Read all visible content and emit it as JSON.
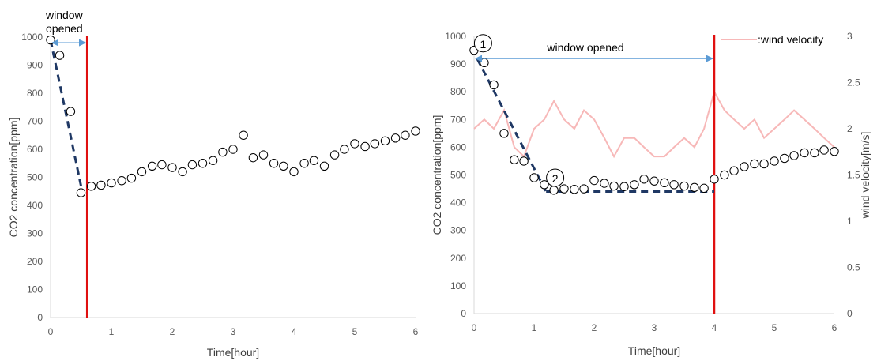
{
  "colors": {
    "marker_stroke": "#000000",
    "axis": "#d9d9d9",
    "tick_text": "#595959",
    "vline": "#e01010",
    "trend": "#1f3864",
    "arrow": "#5b9bd5",
    "wind": "#f7b8b8"
  },
  "chart_data": [
    {
      "type": "scatter",
      "xlabel": "Time[hour]",
      "ylabel": "CO2 concentration[ppm]",
      "xlim": [
        0,
        6
      ],
      "ylim": [
        0,
        1000
      ],
      "xticks": [
        "0",
        "1",
        "2",
        "3",
        "4",
        "5",
        "6"
      ],
      "yticks": [
        "0",
        "100",
        "200",
        "300",
        "400",
        "500",
        "600",
        "700",
        "800",
        "900",
        "1000"
      ],
      "grid": false,
      "series": [
        {
          "x": [
            0.0,
            0.15,
            0.33,
            0.5,
            0.67,
            0.83,
            1.0,
            1.17,
            1.33,
            1.5,
            1.67,
            1.83,
            2.0,
            2.17,
            2.33,
            2.5,
            2.67,
            2.83,
            3.0,
            3.17,
            3.33,
            3.5,
            3.67,
            3.83,
            4.0,
            4.17,
            4.33,
            4.5,
            4.67,
            4.83,
            5.0,
            5.17,
            5.33,
            5.5,
            5.67,
            5.83,
            6.0
          ],
          "y": [
            990,
            935,
            735,
            445,
            468,
            472,
            480,
            488,
            497,
            520,
            540,
            545,
            535,
            520,
            545,
            550,
            560,
            590,
            600,
            650,
            570,
            580,
            550,
            540,
            520,
            550,
            560,
            540,
            580,
            600,
            620,
            610,
            620,
            630,
            640,
            650,
            665
          ]
        }
      ],
      "trend_line": {
        "x": [
          0.0,
          0.5
        ],
        "y": [
          990,
          470
        ]
      },
      "vline": {
        "x": 0.6
      },
      "annotations": [
        {
          "text_lines": [
            "window",
            "opened"
          ],
          "arrow_x": [
            0.0,
            0.6
          ],
          "arrow_y": 980
        }
      ]
    },
    {
      "type": "scatter",
      "xlabel": "Time[hour]",
      "ylabel": "CO2 concentration[ppm]",
      "y2label": "wind velocity[m/s]",
      "xlim": [
        0,
        6
      ],
      "ylim": [
        0,
        1000
      ],
      "y2lim": [
        0,
        3
      ],
      "xticks": [
        "0",
        "1",
        "2",
        "3",
        "4",
        "5",
        "6"
      ],
      "yticks": [
        "0",
        "100",
        "200",
        "300",
        "400",
        "500",
        "600",
        "700",
        "800",
        "900",
        "1000"
      ],
      "y2ticks": [
        "0",
        "0.5",
        "1",
        "1.5",
        "2",
        "2.5",
        "3"
      ],
      "grid": false,
      "series": [
        {
          "x": [
            0.0,
            0.17,
            0.33,
            0.5,
            0.67,
            0.83,
            1.0,
            1.17,
            1.33,
            1.5,
            1.67,
            1.83,
            2.0,
            2.17,
            2.33,
            2.5,
            2.67,
            2.83,
            3.0,
            3.17,
            3.33,
            3.5,
            3.67,
            3.83,
            4.0,
            4.17,
            4.33,
            4.5,
            4.67,
            4.83,
            5.0,
            5.17,
            5.33,
            5.5,
            5.67,
            5.83,
            6.0
          ],
          "y": [
            950,
            905,
            825,
            650,
            555,
            550,
            490,
            465,
            445,
            450,
            448,
            450,
            480,
            470,
            460,
            458,
            465,
            485,
            478,
            472,
            465,
            460,
            455,
            452,
            485,
            500,
            515,
            530,
            540,
            540,
            550,
            560,
            570,
            580,
            580,
            590,
            585
          ]
        },
        {
          "name": ":wind velocity",
          "axis": "y2",
          "x": [
            0.0,
            0.17,
            0.33,
            0.5,
            0.67,
            0.83,
            1.0,
            1.17,
            1.33,
            1.5,
            1.67,
            1.83,
            2.0,
            2.17,
            2.33,
            2.5,
            2.67,
            2.83,
            3.0,
            3.17,
            3.33,
            3.5,
            3.67,
            3.83,
            4.0,
            4.17,
            4.33,
            4.5,
            4.67,
            4.83,
            5.0,
            5.17,
            5.33,
            5.5,
            5.67,
            5.83,
            6.0
          ],
          "y": [
            2.0,
            2.1,
            2.0,
            2.2,
            1.8,
            1.7,
            2.0,
            2.1,
            2.3,
            2.1,
            2.0,
            2.2,
            2.1,
            1.9,
            1.7,
            1.9,
            1.9,
            1.8,
            1.7,
            1.7,
            1.8,
            1.9,
            1.8,
            2.0,
            2.4,
            2.2,
            2.1,
            2.0,
            2.1,
            1.9,
            2.0,
            2.1,
            2.2,
            2.1,
            2.0,
            1.9,
            1.8
          ]
        }
      ],
      "trend_lines": [
        {
          "x": [
            0.05,
            1.2
          ],
          "y": [
            920,
            440
          ],
          "style": "dashed"
        },
        {
          "x": [
            1.2,
            4.0
          ],
          "y": [
            440,
            440
          ],
          "style": "dashed"
        }
      ],
      "vline": {
        "x": 4.0
      },
      "annotations": [
        {
          "text": "window opened",
          "arrow_x": [
            0.0,
            4.0
          ],
          "arrow_y": 920
        },
        {
          "text": "1",
          "x": 0.15,
          "y": 975,
          "circled": true
        },
        {
          "text": "2",
          "x": 1.35,
          "y": 490,
          "circled": true
        }
      ],
      "legend": {
        "label": ":wind velocity",
        "placement": "top-right"
      }
    }
  ]
}
